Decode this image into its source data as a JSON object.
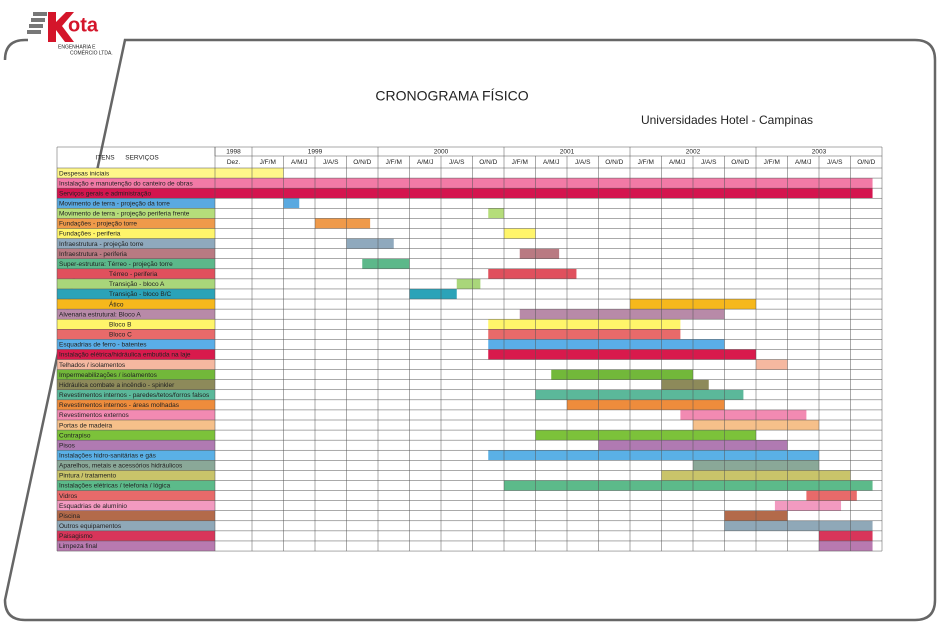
{
  "logo": {
    "name": "ota",
    "subtitle_1": "ENGENHARIA E",
    "subtitle_2": "COMÉRCIO LTDA."
  },
  "title": "CRONOGRAMA FÍSICO",
  "subtitle": "Universidades Hotel - Campinas",
  "header": {
    "items": "ITENS",
    "services": "SERVIÇOS"
  },
  "columns": [
    {
      "year": "1998",
      "periods": [
        "Dez."
      ]
    },
    {
      "year": "1999",
      "periods": [
        "J/F/M",
        "A/M/J",
        "J/A/S",
        "O/N/D"
      ]
    },
    {
      "year": "2000",
      "periods": [
        "J/F/M",
        "A/M/J",
        "J/A/S",
        "O/N/D"
      ]
    },
    {
      "year": "2001",
      "periods": [
        "J/F/M",
        "A/M/J",
        "J/A/S",
        "O/N/D"
      ]
    },
    {
      "year": "2002",
      "periods": [
        "J/F/M",
        "A/M/J",
        "J/A/S",
        "O/N/D"
      ]
    },
    {
      "year": "2003",
      "periods": [
        "J/F/M",
        "A/M/J",
        "J/A/S",
        "O/N/D"
      ]
    }
  ],
  "rows": [
    {
      "label": "Despesas iniciais",
      "color": "#fff78a",
      "start": 0,
      "end": 2
    },
    {
      "label": "Instalação e manutenção do canteiro de obras",
      "color": "#f27aa6",
      "start": 0,
      "end": 20.7
    },
    {
      "label": "Serviços gerais e administração",
      "color": "#d4154f",
      "start": 0,
      "end": 20.7
    },
    {
      "label": "Movimento de terra - projeção da torre",
      "color": "#5aa9e0",
      "start": 2,
      "end": 2.5
    },
    {
      "label": "Movimento de terra - projeção periferia  frente",
      "color": "#b5dd7a",
      "start": 8.5,
      "end": 9
    },
    {
      "label": "Fundações - projeção torre",
      "color": "#ef9a4a",
      "start": 3,
      "end": 4.75
    },
    {
      "label": "Fundações - periferia",
      "color": "#fff56a",
      "start": 9,
      "end": 10
    },
    {
      "label": "Infraestrutura - projeção torre",
      "color": "#8fa9bd",
      "start": 4,
      "end": 5.5
    },
    {
      "label": "Infraestrutura - periferia",
      "color": "#b97a82",
      "start": 9.5,
      "end": 10.75
    },
    {
      "label": "Super-estrutura: Térreo - projeção torre",
      "color": "#5cb88a",
      "start": 4.5,
      "end": 6
    },
    {
      "label": "Térreo - periferia",
      "color": "#e0505d",
      "start": 8.5,
      "end": 11.3,
      "indent": true
    },
    {
      "label": "Transição - bloco A",
      "color": "#a9d67a",
      "start": 7.5,
      "end": 8.25,
      "indent": true
    },
    {
      "label": "Transição - bloco B/C",
      "color": "#2ba3b8",
      "start": 6,
      "end": 7.5,
      "indent": true
    },
    {
      "label": "Ático",
      "color": "#f6b81c",
      "start": 13,
      "end": 17,
      "indent": true
    },
    {
      "label": "Alvenaria estrutural: Bloco A",
      "color": "#b88aa8",
      "start": 9.5,
      "end": 16
    },
    {
      "label": "Bloco B",
      "color": "#fff56a",
      "start": 8.5,
      "end": 14.6,
      "indent": true
    },
    {
      "label": "Bloco C",
      "color": "#e86a6a",
      "start": 8.5,
      "end": 14.6,
      "indent": true
    },
    {
      "label": "Esquadrias de ferro - batentes",
      "color": "#5aaee8",
      "start": 8.5,
      "end": 16
    },
    {
      "label": "Instalação elétrica/hidráulica embutida na laje",
      "color": "#d81a4c",
      "start": 8.5,
      "end": 17
    },
    {
      "label": "Telhados / isolamentos",
      "color": "#f5b8a0",
      "start": 17,
      "end": 18
    },
    {
      "label": "Impermeabilizações / isolamentos",
      "color": "#72b83a",
      "start": 10.5,
      "end": 15
    },
    {
      "label": "Hidráulica combate a incêndio - spinkler",
      "color": "#8d8a5a",
      "start": 14,
      "end": 15.5
    },
    {
      "label": "Revestimentos internos - paredes/tetos/forros falsos",
      "color": "#5bb89a",
      "start": 10,
      "end": 16.6
    },
    {
      "label": "Revestimentos internos - áreas molhadas",
      "color": "#ee8c3c",
      "start": 11,
      "end": 16
    },
    {
      "label": "Revestimentos externos",
      "color": "#f28ab2",
      "start": 14.6,
      "end": 18.6
    },
    {
      "label": "Portas de madeira",
      "color": "#f6c08a",
      "start": 15,
      "end": 19
    },
    {
      "label": "Contrapiso",
      "color": "#7cc23a",
      "start": 10,
      "end": 17
    },
    {
      "label": "Pisos",
      "color": "#b07ab2",
      "start": 12,
      "end": 18
    },
    {
      "label": "Instalações hidro-sanitárias e gás",
      "color": "#5ab0e6",
      "start": 8.5,
      "end": 19
    },
    {
      "label": "Aparelhos, metais e acessórios hidráulicos",
      "color": "#8aa898",
      "start": 15,
      "end": 19
    },
    {
      "label": "Pintura / tratamento",
      "color": "#c9c46a",
      "start": 14,
      "end": 20
    },
    {
      "label": "Instalações elétricas / telefonia / lógica",
      "color": "#5cba8a",
      "start": 9,
      "end": 20.7
    },
    {
      "label": "Vidros",
      "color": "#e86a6a",
      "start": 18.6,
      "end": 20.2
    },
    {
      "label": "Esquadrias de alumínio",
      "color": "#f29ac0",
      "start": 17.6,
      "end": 19.7
    },
    {
      "label": "Piscina",
      "color": "#b36a4a",
      "start": 16,
      "end": 18
    },
    {
      "label": "Outros equipamentos",
      "color": "#8fa8b8",
      "start": 16,
      "end": 20.7
    },
    {
      "label": "Paisagismo",
      "color": "#d8355a",
      "start": 19,
      "end": 20.7
    },
    {
      "label": "Limpeza final",
      "color": "#b87ab0",
      "start": 19,
      "end": 20.7
    }
  ]
}
